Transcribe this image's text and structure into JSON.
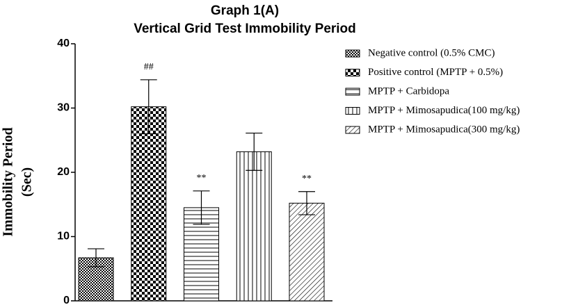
{
  "chart_data": {
    "type": "bar",
    "title": "Graph 1(A)",
    "subtitle": "Vertical Grid Test Immobility Period",
    "ylabel": [
      "Immobility Period",
      "(Sec)"
    ],
    "categories": [
      null
    ],
    "ylim": [
      0,
      40
    ],
    "yticks": [
      0,
      10,
      20,
      30,
      40
    ],
    "grid": false,
    "legend": "right",
    "series": [
      {
        "name": "Negative control (0.5% CMC)",
        "pattern": "checker-fine",
        "color": "#000000",
        "values": [
          6.7
        ],
        "errors": [
          1.4
        ]
      },
      {
        "name": "Positive control  (MPTP + 0.5%)",
        "pattern": "checker",
        "color": "#000000",
        "values": [
          30.2
        ],
        "errors": [
          4.2
        ],
        "annotation": "##"
      },
      {
        "name": "MPTP + Carbidopa",
        "pattern": "hlines",
        "color": "#000000",
        "values": [
          14.5
        ],
        "errors": [
          2.6
        ],
        "annotation": "**"
      },
      {
        "name": "MPTP + Mimosapudica(100 mg/kg)",
        "pattern": "vlines",
        "color": "#000000",
        "values": [
          23.2
        ],
        "errors": [
          2.9
        ]
      },
      {
        "name": "MPTP + Mimosapudica(300 mg/kg)",
        "pattern": "diag",
        "color": "#000000",
        "values": [
          15.2
        ],
        "errors": [
          1.8
        ],
        "annotation": "**"
      }
    ]
  }
}
